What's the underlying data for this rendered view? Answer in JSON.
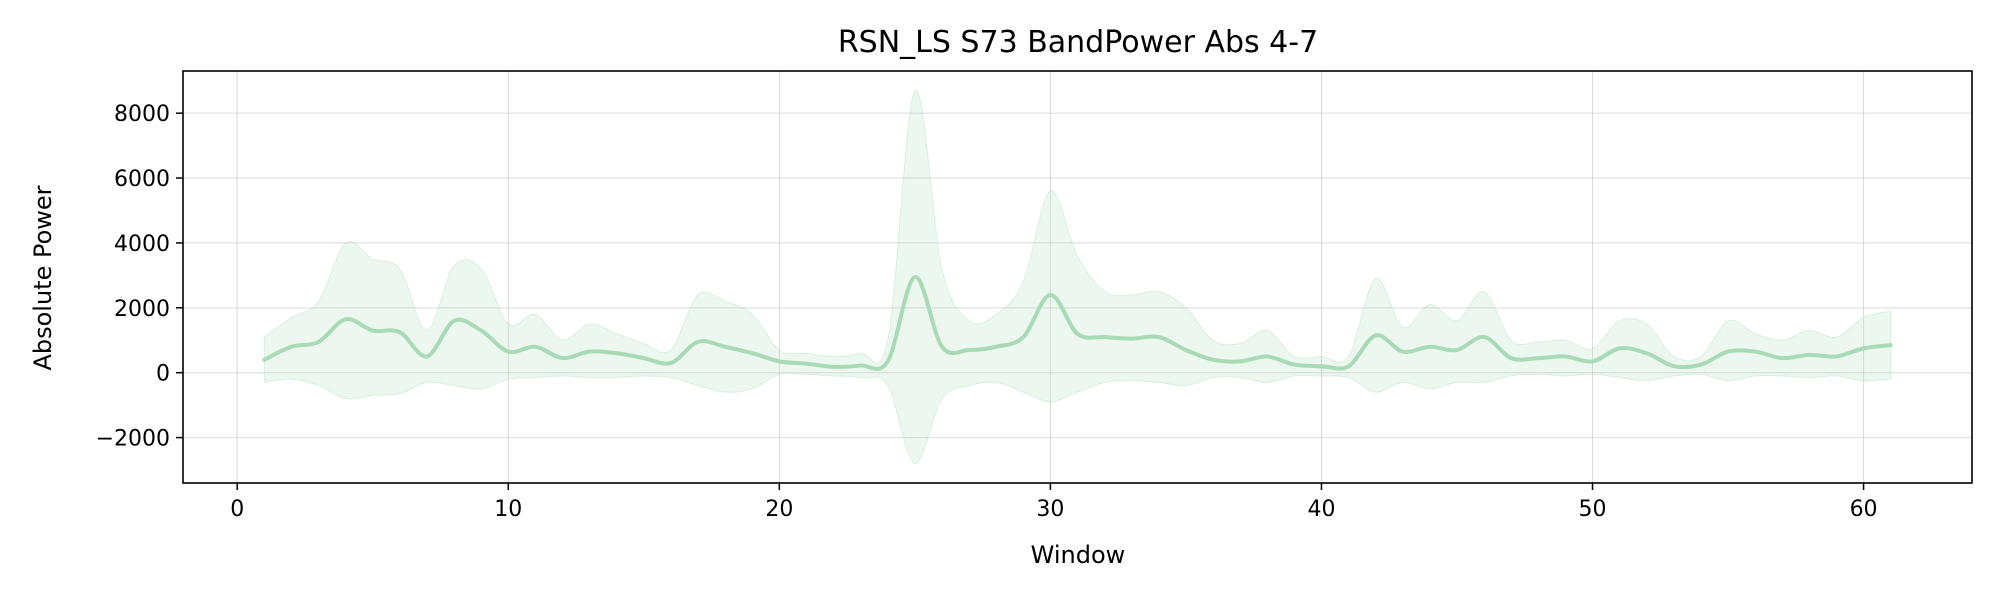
{
  "chart_data": {
    "type": "line",
    "title": "RSN_LS S73 BandPower Abs 4-7",
    "xlabel": "Window",
    "ylabel": "Absolute Power",
    "xlim": [
      -2,
      64
    ],
    "ylim": [
      -3400,
      9300
    ],
    "xticks": [
      0,
      10,
      20,
      30,
      40,
      50,
      60
    ],
    "yticks": [
      -2000,
      0,
      2000,
      4000,
      6000,
      8000
    ],
    "ytick_labels": [
      "−2000",
      "0",
      "2000",
      "4000",
      "6000",
      "8000"
    ],
    "grid": true,
    "colors": {
      "line": "#a8dbb5",
      "band": "#a8dbb5"
    },
    "series": [
      {
        "x": [
          1,
          2,
          3,
          4,
          5,
          6,
          7,
          8,
          9,
          10,
          11,
          12,
          13,
          14,
          15,
          16,
          17,
          18,
          19,
          20,
          21,
          22,
          23,
          24,
          25,
          26,
          27,
          28,
          29,
          30,
          31,
          32,
          33,
          34,
          35,
          36,
          37,
          38,
          39,
          40,
          41,
          42,
          43,
          44,
          45,
          46,
          47,
          48,
          49,
          50,
          51,
          52,
          53,
          54,
          55,
          56,
          57,
          58,
          59,
          60,
          61
        ],
        "mean": [
          400,
          800,
          950,
          1650,
          1300,
          1250,
          500,
          1600,
          1300,
          650,
          800,
          450,
          650,
          600,
          450,
          300,
          950,
          800,
          600,
          350,
          280,
          180,
          220,
          350,
          2950,
          800,
          700,
          800,
          1100,
          2400,
          1200,
          1100,
          1050,
          1100,
          700,
          400,
          350,
          500,
          250,
          200,
          200,
          1150,
          650,
          800,
          700,
          1100,
          450,
          450,
          500,
          350,
          750,
          600,
          200,
          250,
          650,
          650,
          450,
          550,
          500,
          750,
          850
        ],
        "upper": [
          1100,
          1700,
          2200,
          4000,
          3500,
          3200,
          1300,
          3300,
          3200,
          1500,
          1800,
          1000,
          1500,
          1200,
          900,
          700,
          2400,
          2200,
          1800,
          700,
          600,
          500,
          600,
          1000,
          8700,
          3200,
          1600,
          1800,
          2800,
          5600,
          3600,
          2500,
          2400,
          2500,
          2000,
          1000,
          900,
          1300,
          500,
          500,
          500,
          2900,
          1400,
          2100,
          1600,
          2500,
          1000,
          950,
          1000,
          750,
          1600,
          1500,
          500,
          500,
          1600,
          1200,
          1000,
          1300,
          1100,
          1700,
          1900
        ],
        "lower": [
          -300,
          -200,
          -400,
          -800,
          -700,
          -650,
          -300,
          -400,
          -500,
          -200,
          -150,
          -100,
          -150,
          -150,
          -100,
          -150,
          -400,
          -600,
          -500,
          -50,
          -50,
          -100,
          -150,
          -400,
          -2800,
          -800,
          -400,
          -300,
          -600,
          -900,
          -600,
          -300,
          -250,
          -300,
          -400,
          -150,
          -150,
          -300,
          -100,
          -100,
          -150,
          -600,
          -300,
          -500,
          -300,
          -300,
          -100,
          -50,
          -100,
          -50,
          -150,
          -250,
          -100,
          -50,
          -250,
          -100,
          -100,
          -150,
          -100,
          -250,
          -200
        ]
      }
    ]
  }
}
